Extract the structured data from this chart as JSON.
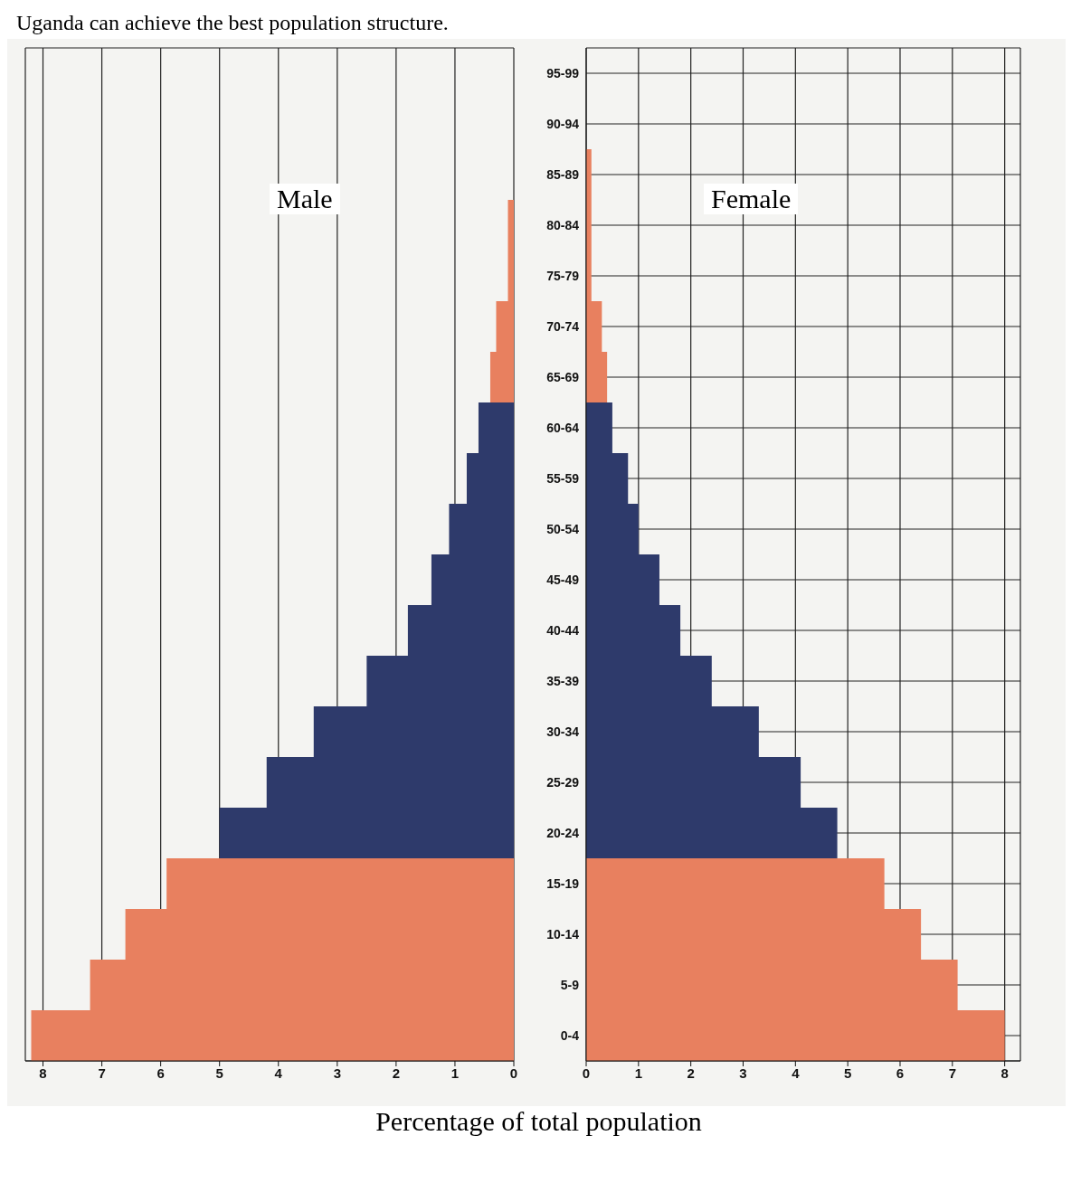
{
  "chart_data": [
    {
      "type": "bar",
      "orientation": "horizontal",
      "title": "Uganda can achieve the best population structure.",
      "series": [
        {
          "name": "Male",
          "values": [
            0,
            0,
            0,
            0.1,
            0.1,
            0.3,
            0.4,
            0.6,
            0.8,
            1.1,
            1.4,
            1.8,
            2.5,
            3.4,
            4.2,
            5.0,
            5.9,
            6.6,
            7.2,
            8.2
          ],
          "colors": [
            "#e8805f",
            "#e8805f",
            "#e8805f",
            "#e8805f",
            "#e8805f",
            "#e8805f",
            "#e8805f",
            "#2e3a6b",
            "#2e3a6b",
            "#2e3a6b",
            "#2e3a6b",
            "#2e3a6b",
            "#2e3a6b",
            "#2e3a6b",
            "#2e3a6b",
            "#2e3a6b",
            "#e8805f",
            "#e8805f",
            "#e8805f",
            "#e8805f"
          ]
        }
      ],
      "xlim": [
        8.3,
        0
      ],
      "xticks": [
        8,
        7,
        6,
        5,
        4,
        3,
        2,
        1,
        0
      ],
      "tick_labels": "x",
      "grid": true,
      "legend": false
    },
    {
      "type": "bar",
      "orientation": "horizontal",
      "xlabel": "Percentage of total population",
      "categories": [
        "95-99",
        "90-94",
        "85-89",
        "80-84",
        "75-79",
        "70-74",
        "65-69",
        "60-64",
        "55-59",
        "50-54",
        "45-49",
        "40-44",
        "35-39",
        "30-34",
        "25-29",
        "20-24",
        "15-19",
        "10-14",
        "5-9",
        "0-4"
      ],
      "series": [
        {
          "name": "Female",
          "values": [
            0,
            0,
            0.1,
            0.1,
            0.1,
            0.3,
            0.4,
            0.5,
            0.8,
            1.0,
            1.4,
            1.8,
            2.4,
            3.3,
            4.1,
            4.8,
            5.7,
            6.4,
            7.1,
            8.0
          ],
          "colors": [
            "#e8805f",
            "#e8805f",
            "#e8805f",
            "#e8805f",
            "#e8805f",
            "#e8805f",
            "#e8805f",
            "#2e3a6b",
            "#2e3a6b",
            "#2e3a6b",
            "#2e3a6b",
            "#2e3a6b",
            "#2e3a6b",
            "#2e3a6b",
            "#2e3a6b",
            "#2e3a6b",
            "#e8805f",
            "#e8805f",
            "#e8805f",
            "#e8805f"
          ]
        }
      ],
      "xlim": [
        0,
        8.3
      ],
      "xticks": [
        0,
        1,
        2,
        3,
        4,
        5,
        6,
        7,
        8
      ],
      "grid": true,
      "legend": false
    }
  ]
}
